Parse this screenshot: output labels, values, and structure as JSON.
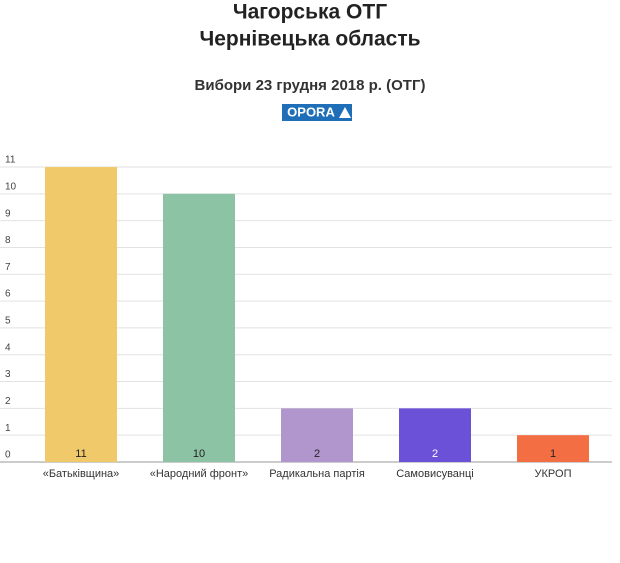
{
  "chart_data": {
    "type": "bar",
    "title": [
      "Чагорська ОТГ",
      "Чернівецька область"
    ],
    "subtitle": "Вибори 23 грудня 2018 р. (ОТГ)",
    "logo": "OPORA",
    "categories": [
      "«Батьківщина»",
      "«Народний фронт»",
      "Радикальна партія",
      "Самовисуванці",
      "УКРОП"
    ],
    "values": [
      11,
      10,
      2,
      2,
      1
    ],
    "colors": [
      "#f0c96b",
      "#8dc3a5",
      "#b096cc",
      "#6b50d8",
      "#f46e44"
    ],
    "ylim": [
      0,
      11
    ],
    "yticks": [
      0,
      1,
      2,
      3,
      4,
      5,
      6,
      7,
      8,
      9,
      10,
      11
    ],
    "grid": true
  }
}
